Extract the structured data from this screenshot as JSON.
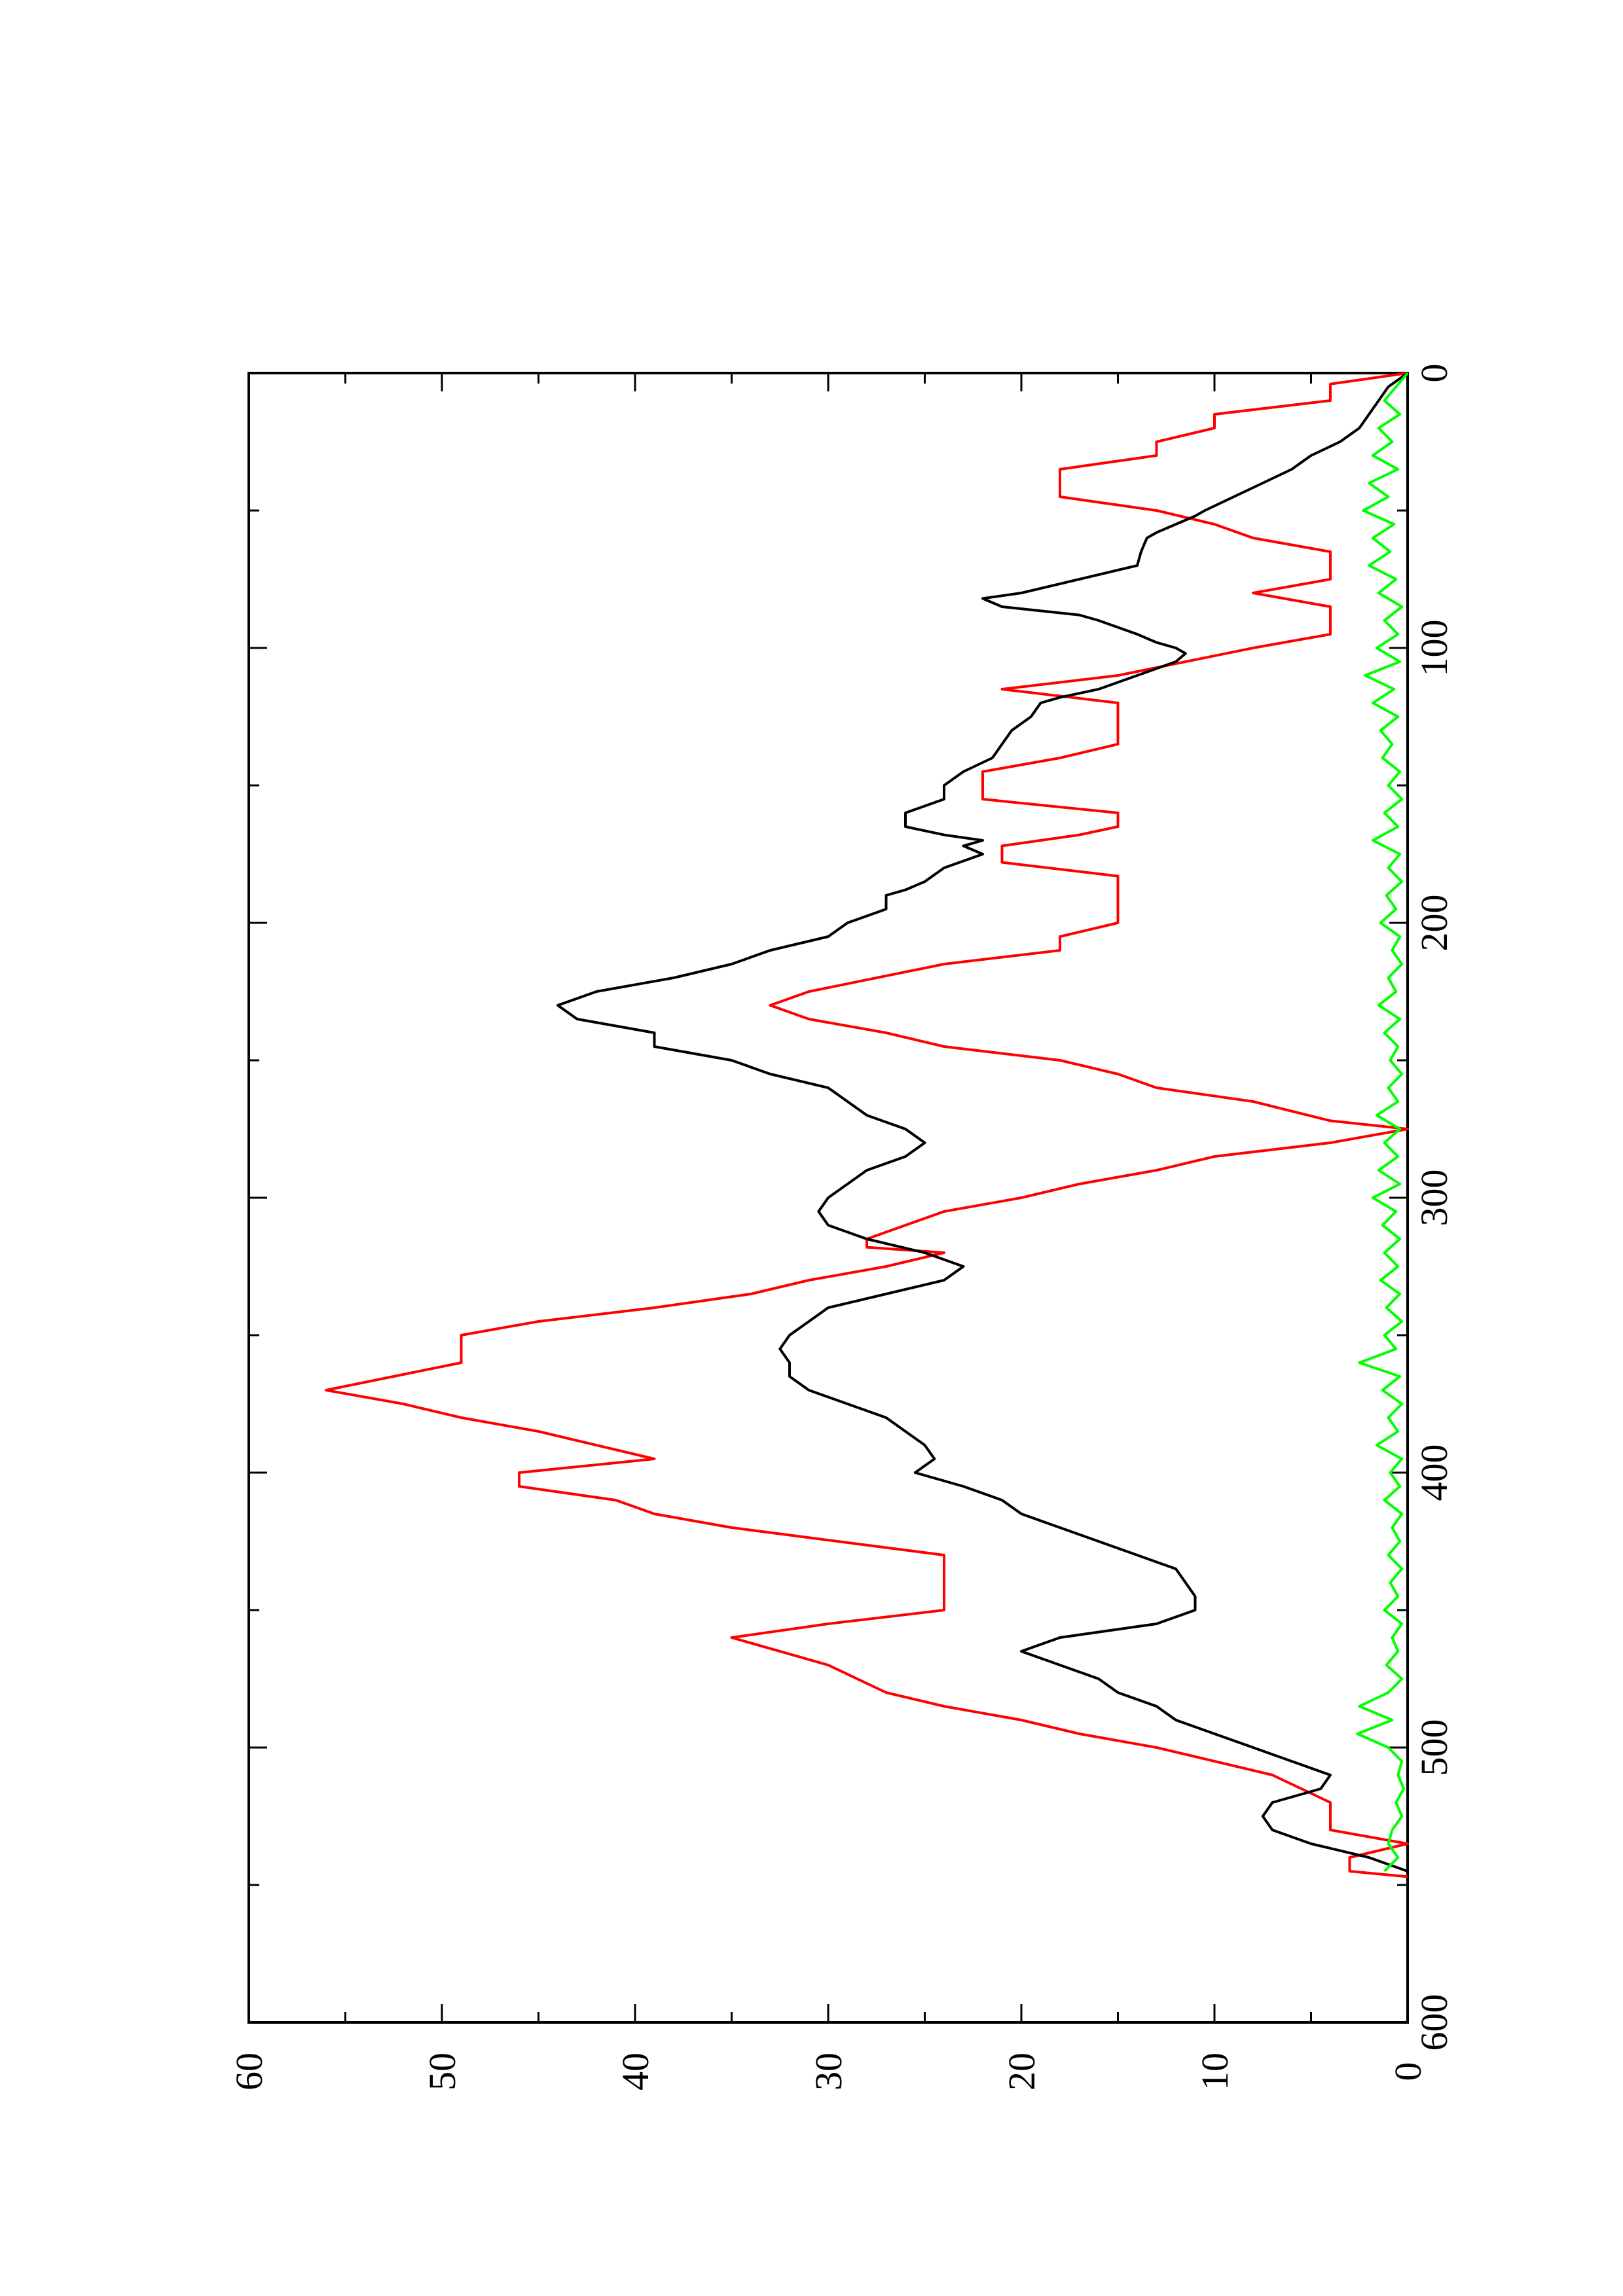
{
  "chart_data": {
    "type": "line",
    "orientation": "rotated-90-ccw",
    "title": "",
    "xlabel": "",
    "ylabel": "",
    "xlim": [
      0,
      600
    ],
    "ylim": [
      0,
      60
    ],
    "x_ticks": [
      0,
      100,
      200,
      300,
      400,
      500,
      600
    ],
    "x_minor_ticks": [
      50,
      150,
      250,
      350,
      450,
      550
    ],
    "y_ticks": [
      0,
      10,
      20,
      30,
      40,
      50,
      60
    ],
    "y_minor_ticks": [
      5,
      15,
      25,
      35,
      45,
      55
    ],
    "x_tick_labels": [
      "0",
      "100",
      "200",
      "300",
      "400",
      "500",
      "600"
    ],
    "y_tick_labels": [
      "0",
      "10",
      "20",
      "30",
      "40",
      "50",
      "60"
    ],
    "grid": false,
    "legend": "none",
    "series": [
      {
        "color": "#ff0000",
        "style": "step",
        "points": [
          [
            0,
            0
          ],
          [
            4,
            4
          ],
          [
            4,
            4
          ],
          [
            10,
            4
          ],
          [
            15,
            10
          ],
          [
            15,
            10
          ],
          [
            20,
            10
          ],
          [
            25,
            13
          ],
          [
            30,
            13
          ],
          [
            35,
            18
          ],
          [
            45,
            18
          ],
          [
            50,
            13
          ],
          [
            55,
            10
          ],
          [
            60,
            8
          ],
          [
            65,
            4
          ],
          [
            75,
            4
          ],
          [
            80,
            8
          ],
          [
            85,
            4
          ],
          [
            95,
            4
          ],
          [
            100,
            8
          ],
          [
            110,
            15
          ],
          [
            115,
            21
          ],
          [
            115,
            21
          ],
          [
            120,
            15
          ],
          [
            135,
            15
          ],
          [
            140,
            18
          ],
          [
            145,
            22
          ],
          [
            155,
            22
          ],
          [
            160,
            15
          ],
          [
            165,
            15
          ],
          [
            168,
            17
          ],
          [
            172,
            21
          ],
          [
            178,
            21
          ],
          [
            183,
            15
          ],
          [
            200,
            15
          ],
          [
            205,
            18
          ],
          [
            210,
            18
          ],
          [
            215,
            24
          ],
          [
            225,
            31
          ],
          [
            230,
            33
          ],
          [
            235,
            31
          ],
          [
            240,
            27
          ],
          [
            245,
            24
          ],
          [
            250,
            18
          ],
          [
            255,
            15
          ],
          [
            260,
            13
          ],
          [
            265,
            8
          ],
          [
            272,
            4
          ],
          [
            275,
            0
          ],
          [
            280,
            4
          ],
          [
            285,
            10
          ],
          [
            290,
            13
          ],
          [
            295,
            17
          ],
          [
            300,
            20
          ],
          [
            305,
            24
          ],
          [
            315,
            28
          ],
          [
            318,
            28
          ],
          [
            320,
            24
          ],
          [
            325,
            27
          ],
          [
            330,
            31
          ],
          [
            335,
            34
          ],
          [
            340,
            39
          ],
          [
            345,
            45
          ],
          [
            350,
            49
          ],
          [
            360,
            49
          ],
          [
            370,
            56
          ],
          [
            375,
            52
          ],
          [
            380,
            49
          ],
          [
            385,
            45
          ],
          [
            395,
            39
          ],
          [
            400,
            46
          ],
          [
            405,
            46
          ],
          [
            410,
            41
          ],
          [
            415,
            39
          ],
          [
            420,
            35
          ],
          [
            430,
            24
          ],
          [
            450,
            24
          ],
          [
            455,
            30
          ],
          [
            460,
            35
          ],
          [
            470,
            30
          ],
          [
            480,
            27
          ],
          [
            485,
            24
          ],
          [
            490,
            20
          ],
          [
            495,
            17
          ],
          [
            500,
            13
          ],
          [
            510,
            7
          ],
          [
            520,
            4
          ],
          [
            530,
            4
          ],
          [
            535,
            0
          ],
          [
            540,
            3
          ],
          [
            545,
            3
          ],
          [
            547,
            0
          ]
        ]
      },
      {
        "color": "#000000",
        "style": "line",
        "points": [
          [
            0,
            0
          ],
          [
            5,
            1
          ],
          [
            10,
            1.5
          ],
          [
            15,
            2
          ],
          [
            20,
            2.5
          ],
          [
            25,
            3.5
          ],
          [
            30,
            5
          ],
          [
            35,
            6
          ],
          [
            40,
            7.5
          ],
          [
            45,
            9
          ],
          [
            50,
            10.5
          ],
          [
            52,
            11
          ],
          [
            55,
            12
          ],
          [
            58,
            13
          ],
          [
            60,
            13.5
          ],
          [
            65,
            13.8
          ],
          [
            70,
            14
          ],
          [
            75,
            17
          ],
          [
            80,
            20
          ],
          [
            82,
            22
          ],
          [
            85,
            21
          ],
          [
            88,
            17
          ],
          [
            90,
            16
          ],
          [
            95,
            14
          ],
          [
            98,
            13
          ],
          [
            100,
            12
          ],
          [
            102,
            11.5
          ],
          [
            105,
            12
          ],
          [
            110,
            14
          ],
          [
            115,
            16
          ],
          [
            118,
            18
          ],
          [
            120,
            19
          ],
          [
            125,
            19.5
          ],
          [
            130,
            20.5
          ],
          [
            135,
            21
          ],
          [
            140,
            21.5
          ],
          [
            145,
            23
          ],
          [
            150,
            24
          ],
          [
            155,
            24
          ],
          [
            160,
            26
          ],
          [
            165,
            26
          ],
          [
            168,
            24
          ],
          [
            170,
            22
          ],
          [
            172,
            23
          ],
          [
            175,
            22
          ],
          [
            180,
            24
          ],
          [
            185,
            25
          ],
          [
            188,
            26
          ],
          [
            190,
            27
          ],
          [
            195,
            27
          ],
          [
            200,
            29
          ],
          [
            205,
            30
          ],
          [
            210,
            33
          ],
          [
            215,
            35
          ],
          [
            220,
            38
          ],
          [
            225,
            42
          ],
          [
            230,
            44
          ],
          [
            235,
            43
          ],
          [
            240,
            39
          ],
          [
            245,
            39
          ],
          [
            250,
            35
          ],
          [
            255,
            33
          ],
          [
            260,
            30
          ],
          [
            265,
            29
          ],
          [
            270,
            28
          ],
          [
            275,
            26
          ],
          [
            280,
            25
          ],
          [
            285,
            26
          ],
          [
            290,
            28
          ],
          [
            295,
            29
          ],
          [
            300,
            30
          ],
          [
            305,
            30.5
          ],
          [
            310,
            30
          ],
          [
            315,
            28
          ],
          [
            320,
            25
          ],
          [
            325,
            23
          ],
          [
            330,
            24
          ],
          [
            335,
            27
          ],
          [
            340,
            30
          ],
          [
            345,
            31
          ],
          [
            350,
            32
          ],
          [
            355,
            32.5
          ],
          [
            360,
            32
          ],
          [
            365,
            32
          ],
          [
            370,
            31
          ],
          [
            375,
            29
          ],
          [
            380,
            27
          ],
          [
            385,
            26
          ],
          [
            390,
            25
          ],
          [
            395,
            24.5
          ],
          [
            400,
            25.5
          ],
          [
            405,
            23
          ],
          [
            410,
            21
          ],
          [
            415,
            20
          ],
          [
            420,
            18
          ],
          [
            425,
            16
          ],
          [
            430,
            14
          ],
          [
            435,
            12
          ],
          [
            440,
            11.5
          ],
          [
            445,
            11
          ],
          [
            450,
            11
          ],
          [
            455,
            13
          ],
          [
            460,
            18
          ],
          [
            465,
            20
          ],
          [
            470,
            18
          ],
          [
            475,
            16
          ],
          [
            480,
            15
          ],
          [
            485,
            13
          ],
          [
            490,
            12
          ],
          [
            495,
            10
          ],
          [
            500,
            8
          ],
          [
            505,
            6
          ],
          [
            510,
            4
          ],
          [
            515,
            4.5
          ],
          [
            520,
            7
          ],
          [
            525,
            7.5
          ],
          [
            530,
            7
          ],
          [
            535,
            5
          ],
          [
            540,
            2
          ],
          [
            545,
            0
          ]
        ]
      },
      {
        "color": "#00ff00",
        "style": "line",
        "points": [
          [
            0,
            0
          ],
          [
            5,
            0.6
          ],
          [
            10,
            1.2
          ],
          [
            15,
            0.4
          ],
          [
            20,
            1.5
          ],
          [
            25,
            0.8
          ],
          [
            30,
            1.8
          ],
          [
            35,
            0.5
          ],
          [
            40,
            2.0
          ],
          [
            45,
            1.0
          ],
          [
            50,
            2.3
          ],
          [
            55,
            0.7
          ],
          [
            60,
            1.8
          ],
          [
            65,
            0.9
          ],
          [
            70,
            2.0
          ],
          [
            75,
            0.6
          ],
          [
            80,
            1.5
          ],
          [
            85,
            0.3
          ],
          [
            90,
            1.2
          ],
          [
            95,
            0.5
          ],
          [
            100,
            1.6
          ],
          [
            105,
            0.4
          ],
          [
            110,
            2.2
          ],
          [
            115,
            0.7
          ],
          [
            120,
            1.8
          ],
          [
            125,
            0.5
          ],
          [
            130,
            1.4
          ],
          [
            135,
            0.8
          ],
          [
            140,
            1.3
          ],
          [
            145,
            0.4
          ],
          [
            150,
            1.0
          ],
          [
            155,
            0.3
          ],
          [
            160,
            1.2
          ],
          [
            165,
            0.5
          ],
          [
            170,
            1.8
          ],
          [
            175,
            0.4
          ],
          [
            180,
            1.0
          ],
          [
            185,
            0.3
          ],
          [
            190,
            1.1
          ],
          [
            195,
            0.6
          ],
          [
            200,
            1.4
          ],
          [
            205,
            0.4
          ],
          [
            210,
            0.8
          ],
          [
            215,
            0.3
          ],
          [
            220,
            1.0
          ],
          [
            225,
            0.6
          ],
          [
            230,
            1.5
          ],
          [
            235,
            0.4
          ],
          [
            240,
            1.2
          ],
          [
            245,
            0.5
          ],
          [
            250,
            0.9
          ],
          [
            255,
            0.3
          ],
          [
            260,
            1.0
          ],
          [
            265,
            0.5
          ],
          [
            270,
            1.6
          ],
          [
            275,
            0.4
          ],
          [
            280,
            1.2
          ],
          [
            285,
            0.5
          ],
          [
            290,
            1.5
          ],
          [
            295,
            0.4
          ],
          [
            300,
            1.8
          ],
          [
            305,
            0.6
          ],
          [
            310,
            1.3
          ],
          [
            315,
            0.4
          ],
          [
            320,
            1.2
          ],
          [
            325,
            0.5
          ],
          [
            330,
            1.4
          ],
          [
            335,
            0.4
          ],
          [
            340,
            1.1
          ],
          [
            345,
            0.3
          ],
          [
            350,
            1.2
          ],
          [
            355,
            0.6
          ],
          [
            360,
            2.5
          ],
          [
            365,
            0.4
          ],
          [
            370,
            1.3
          ],
          [
            375,
            0.3
          ],
          [
            380,
            1.0
          ],
          [
            385,
            0.5
          ],
          [
            390,
            1.6
          ],
          [
            395,
            0.3
          ],
          [
            400,
            0.9
          ],
          [
            405,
            0.4
          ],
          [
            410,
            1.2
          ],
          [
            415,
            0.3
          ],
          [
            420,
            0.8
          ],
          [
            425,
            0.4
          ],
          [
            430,
            1.0
          ],
          [
            435,
            0.3
          ],
          [
            440,
            0.9
          ],
          [
            445,
            0.5
          ],
          [
            450,
            1.2
          ],
          [
            455,
            0.3
          ],
          [
            460,
            0.8
          ],
          [
            465,
            0.5
          ],
          [
            470,
            1.1
          ],
          [
            475,
            0.3
          ],
          [
            480,
            1.0
          ],
          [
            485,
            2.5
          ],
          [
            490,
            0.8
          ],
          [
            495,
            2.6
          ],
          [
            500,
            1.0
          ],
          [
            505,
            0.3
          ],
          [
            510,
            0.5
          ],
          [
            515,
            0.2
          ],
          [
            520,
            0.6
          ],
          [
            525,
            0.3
          ],
          [
            530,
            0.8
          ],
          [
            535,
            1.0
          ],
          [
            540,
            0.5
          ],
          [
            545,
            1.2
          ]
        ]
      }
    ]
  }
}
